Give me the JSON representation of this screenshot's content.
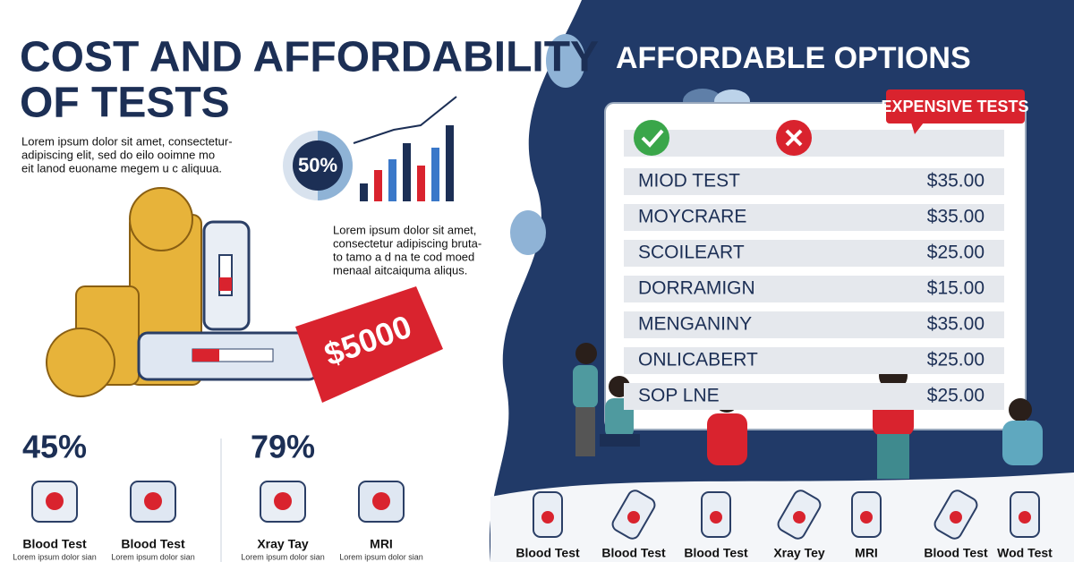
{
  "header": {
    "title_lines": [
      "COST AND AFFORDABILITY",
      "OF TESTS"
    ],
    "intro": [
      "Lorem ipsum dolor sit amet, consectetur-",
      "adipiscing elit, sed do eilo ooimne mo",
      "eit lanod euoname megem u c aliquua."
    ]
  },
  "chart_badge": "50%",
  "note": [
    "Lorem ipsum dolor sit amet,",
    "consectetur adipiscing bruta-",
    "to tamo a d na te cod moed",
    "menaal aitcaiquma aliqus."
  ],
  "price_tag": "$5000",
  "stats": [
    {
      "value": "45%",
      "items": [
        {
          "label": "Blood Test",
          "caption": "Lorem ipsum dolor sian"
        },
        {
          "label": "Blood Test",
          "caption": "Lorem ipsum dolor sian"
        }
      ]
    },
    {
      "value": "79%",
      "items": [
        {
          "label": "Xray Tay",
          "caption": "Lorem ipsum dolor sian"
        },
        {
          "label": "MRI",
          "caption": "Lorem ipsum dolor sian"
        }
      ]
    }
  ],
  "panel": {
    "title": "AFFORDABLE OPTIONS",
    "badge": "EXPENSIVE TESTS",
    "rows": [
      [
        "MIOD TEST",
        "$35.00"
      ],
      [
        "MOYCRARE",
        "$35.00"
      ],
      [
        "SCOILEART",
        "$25.00"
      ],
      [
        "DORRAMIGN",
        "$15.00"
      ],
      [
        "MENGANINY",
        "$35.00"
      ],
      [
        "ONLICABERT",
        "$25.00"
      ],
      [
        "SOP LNE",
        "$25.00"
      ]
    ]
  },
  "bottom_icons": [
    "Blood Test",
    "Blood Test",
    "Blood Test",
    "Xray Tey",
    "MRI",
    "Blood Test",
    "Wod Test"
  ]
}
